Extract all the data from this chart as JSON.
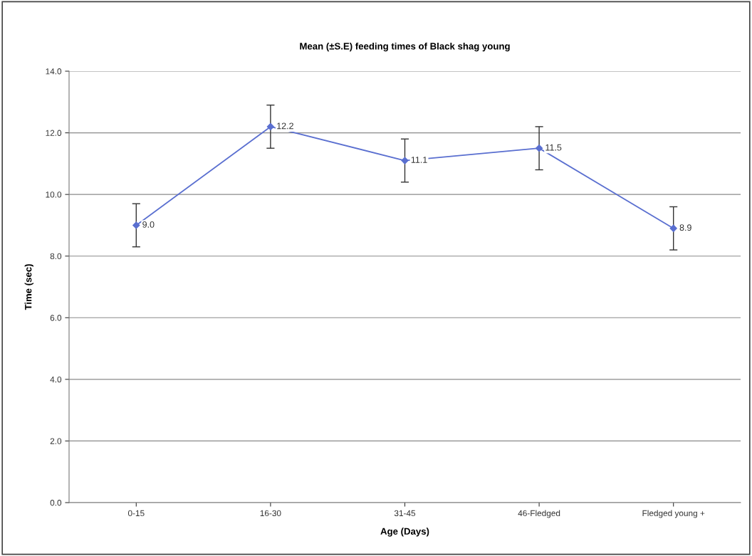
{
  "chart_data": {
    "type": "line",
    "title": "Mean (±S.E) feeding times of Black shag young",
    "xlabel": "Age (Days)",
    "ylabel": "Time (sec)",
    "categories": [
      "0-15",
      "16-30",
      "31-45",
      "46-Fledged",
      "Fledged young +"
    ],
    "series": [
      {
        "color": "#5a6fd0",
        "values": [
          9.0,
          12.2,
          11.1,
          11.5,
          8.9
        ],
        "errors": [
          0.7,
          0.7,
          0.7,
          0.7,
          0.7
        ],
        "value_labels": [
          "9.0",
          "12.2",
          "11.1",
          "11.5",
          "8.9"
        ]
      }
    ],
    "ylim": [
      0,
      14
    ],
    "yticks": [
      {
        "value": 0,
        "label": "0.0"
      },
      {
        "value": 2,
        "label": "2.0"
      },
      {
        "value": 4,
        "label": "4.0"
      },
      {
        "value": 6,
        "label": "6.0"
      },
      {
        "value": 8,
        "label": "8.0"
      },
      {
        "value": 10,
        "label": "10.0"
      },
      {
        "value": 12,
        "label": "12.0"
      },
      {
        "value": 14,
        "label": "14.0"
      }
    ],
    "grid": "y",
    "marker": "diamond",
    "line_style": "solid",
    "legend": false
  }
}
